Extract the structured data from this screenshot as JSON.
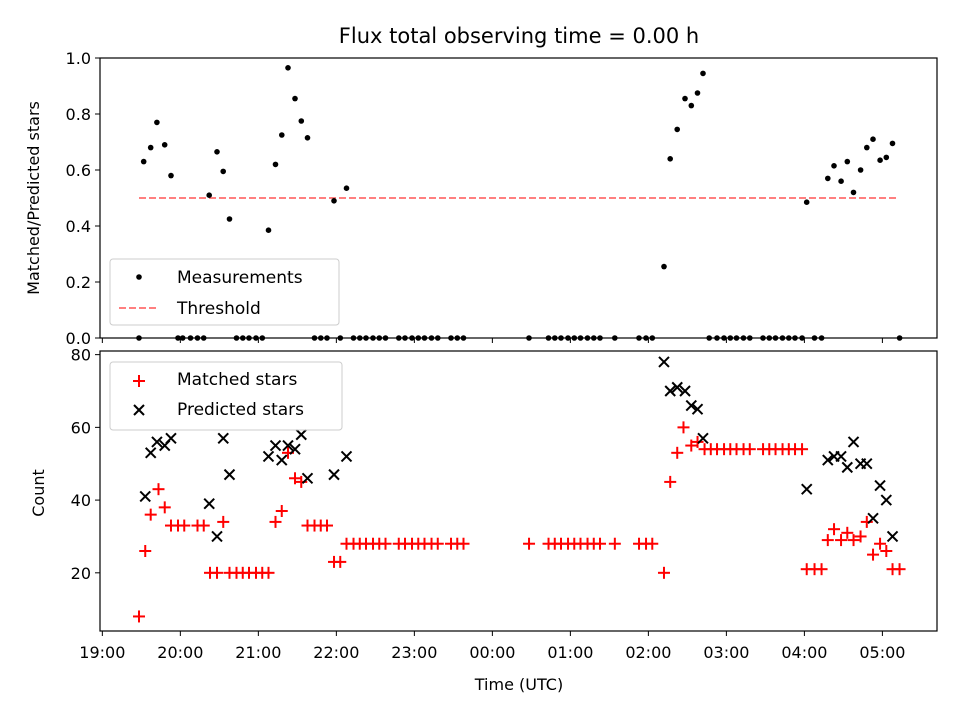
{
  "chart_data": [
    {
      "type": "scatter",
      "title": "Flux total observing time = 0.00 h",
      "xlabel": "",
      "ylabel": "Matched/Predicted stars",
      "ylim": [
        0,
        1.0
      ],
      "yticks": [
        "0.0",
        "0.2",
        "0.4",
        "0.6",
        "0.8",
        "1.0"
      ],
      "grid": false,
      "legend_position": "lower-left",
      "series": [
        {
          "name": "Measurements",
          "marker": "dot",
          "color": "#000000",
          "points": [
            [
              19.47,
              0
            ],
            [
              19.53,
              0.63
            ],
            [
              19.62,
              0.68
            ],
            [
              19.7,
              0.77
            ],
            [
              19.8,
              0.69
            ],
            [
              19.88,
              0.58
            ],
            [
              19.97,
              0
            ],
            [
              20.03,
              0
            ],
            [
              20.13,
              0
            ],
            [
              20.22,
              0
            ],
            [
              20.3,
              0
            ],
            [
              20.37,
              0.51
            ],
            [
              20.47,
              0.665
            ],
            [
              20.55,
              0.595
            ],
            [
              20.63,
              0.425
            ],
            [
              20.72,
              0
            ],
            [
              20.8,
              0
            ],
            [
              20.88,
              0
            ],
            [
              20.97,
              0
            ],
            [
              21.05,
              0
            ],
            [
              21.13,
              0.385
            ],
            [
              21.22,
              0.62
            ],
            [
              21.3,
              0.725
            ],
            [
              21.38,
              0.965
            ],
            [
              21.47,
              0.855
            ],
            [
              21.55,
              0.775
            ],
            [
              21.63,
              0.715
            ],
            [
              21.72,
              0
            ],
            [
              21.8,
              0
            ],
            [
              21.88,
              0
            ],
            [
              21.97,
              0.49
            ],
            [
              22.05,
              0
            ],
            [
              22.13,
              0.535
            ],
            [
              22.22,
              0
            ],
            [
              22.3,
              0
            ],
            [
              22.38,
              0
            ],
            [
              22.47,
              0
            ],
            [
              22.55,
              0
            ],
            [
              22.63,
              0
            ],
            [
              22.8,
              0
            ],
            [
              22.88,
              0
            ],
            [
              22.97,
              0
            ],
            [
              23.05,
              0
            ],
            [
              23.13,
              0
            ],
            [
              23.22,
              0
            ],
            [
              23.3,
              0
            ],
            [
              23.47,
              0
            ],
            [
              23.55,
              0
            ],
            [
              23.63,
              0
            ],
            [
              24.47,
              0
            ],
            [
              24.72,
              0
            ],
            [
              24.8,
              0
            ],
            [
              24.88,
              0
            ],
            [
              24.97,
              0
            ],
            [
              25.05,
              0
            ],
            [
              25.13,
              0
            ],
            [
              25.22,
              0
            ],
            [
              25.3,
              0
            ],
            [
              25.38,
              0
            ],
            [
              25.57,
              0
            ],
            [
              25.88,
              0
            ],
            [
              25.97,
              0
            ],
            [
              26.05,
              0
            ],
            [
              26.2,
              0.255
            ],
            [
              26.28,
              0.64
            ],
            [
              26.37,
              0.745
            ],
            [
              26.47,
              0.855
            ],
            [
              26.55,
              0.83
            ],
            [
              26.63,
              0.875
            ],
            [
              26.7,
              0.945
            ],
            [
              26.78,
              0
            ],
            [
              26.88,
              0
            ],
            [
              26.97,
              0
            ],
            [
              27.05,
              0
            ],
            [
              27.13,
              0
            ],
            [
              27.22,
              0
            ],
            [
              27.3,
              0
            ],
            [
              27.47,
              0
            ],
            [
              27.55,
              0
            ],
            [
              27.63,
              0
            ],
            [
              27.72,
              0
            ],
            [
              27.8,
              0
            ],
            [
              27.88,
              0
            ],
            [
              27.97,
              0
            ],
            [
              28.03,
              0.485
            ],
            [
              28.13,
              0
            ],
            [
              28.22,
              0
            ],
            [
              28.3,
              0.57
            ],
            [
              28.38,
              0.615
            ],
            [
              28.47,
              0.56
            ],
            [
              28.55,
              0.63
            ],
            [
              28.63,
              0.52
            ],
            [
              28.72,
              0.6
            ],
            [
              28.8,
              0.68
            ],
            [
              28.88,
              0.71
            ],
            [
              28.97,
              0.635
            ],
            [
              29.05,
              0.645
            ],
            [
              29.13,
              0.695
            ],
            [
              29.22,
              0
            ]
          ]
        },
        {
          "name": "Threshold",
          "line": "dashed",
          "color": "#ff7f7f",
          "value": 0.5,
          "x_range": [
            19.47,
            29.2
          ]
        }
      ]
    },
    {
      "type": "scatter",
      "title": "",
      "xlabel": "Time (UTC)",
      "ylabel": "Count",
      "ylim": [
        4,
        81
      ],
      "yticks": [
        "20",
        "40",
        "60",
        "80"
      ],
      "xlim": [
        18.97,
        29.7
      ],
      "xticks": [
        {
          "value": 19,
          "label": "19:00"
        },
        {
          "value": 20,
          "label": "20:00"
        },
        {
          "value": 21,
          "label": "21:00"
        },
        {
          "value": 22,
          "label": "22:00"
        },
        {
          "value": 23,
          "label": "23:00"
        },
        {
          "value": 24,
          "label": "00:00"
        },
        {
          "value": 25,
          "label": "01:00"
        },
        {
          "value": 26,
          "label": "02:00"
        },
        {
          "value": 27,
          "label": "03:00"
        },
        {
          "value": 28,
          "label": "04:00"
        },
        {
          "value": 29,
          "label": "05:00"
        }
      ],
      "grid": false,
      "legend_position": "top-left",
      "series": [
        {
          "name": "Matched stars",
          "marker": "plus",
          "color": "#ff0000",
          "points": [
            [
              19.47,
              8
            ],
            [
              19.55,
              26
            ],
            [
              19.62,
              36
            ],
            [
              19.72,
              43
            ],
            [
              19.8,
              38
            ],
            [
              19.88,
              33
            ],
            [
              19.97,
              33
            ],
            [
              20.05,
              33
            ],
            [
              20.22,
              33
            ],
            [
              20.3,
              33
            ],
            [
              20.38,
              20
            ],
            [
              20.47,
              20
            ],
            [
              20.55,
              34
            ],
            [
              20.63,
              20
            ],
            [
              20.72,
              20
            ],
            [
              20.8,
              20
            ],
            [
              20.88,
              20
            ],
            [
              20.97,
              20
            ],
            [
              21.05,
              20
            ],
            [
              21.13,
              20
            ],
            [
              21.22,
              34
            ],
            [
              21.3,
              37
            ],
            [
              21.38,
              53
            ],
            [
              21.47,
              46
            ],
            [
              21.55,
              45
            ],
            [
              21.63,
              33
            ],
            [
              21.72,
              33
            ],
            [
              21.8,
              33
            ],
            [
              21.88,
              33
            ],
            [
              21.97,
              23
            ],
            [
              22.05,
              23
            ],
            [
              22.13,
              28
            ],
            [
              22.22,
              28
            ],
            [
              22.3,
              28
            ],
            [
              22.38,
              28
            ],
            [
              22.47,
              28
            ],
            [
              22.55,
              28
            ],
            [
              22.63,
              28
            ],
            [
              22.8,
              28
            ],
            [
              22.88,
              28
            ],
            [
              22.97,
              28
            ],
            [
              23.05,
              28
            ],
            [
              23.13,
              28
            ],
            [
              23.22,
              28
            ],
            [
              23.3,
              28
            ],
            [
              23.47,
              28
            ],
            [
              23.55,
              28
            ],
            [
              23.63,
              28
            ],
            [
              24.47,
              28
            ],
            [
              24.72,
              28
            ],
            [
              24.8,
              28
            ],
            [
              24.88,
              28
            ],
            [
              24.97,
              28
            ],
            [
              25.05,
              28
            ],
            [
              25.13,
              28
            ],
            [
              25.22,
              28
            ],
            [
              25.3,
              28
            ],
            [
              25.38,
              28
            ],
            [
              25.57,
              28
            ],
            [
              25.88,
              28
            ],
            [
              25.97,
              28
            ],
            [
              26.05,
              28
            ],
            [
              26.2,
              20
            ],
            [
              26.28,
              45
            ],
            [
              26.37,
              53
            ],
            [
              26.45,
              60
            ],
            [
              26.55,
              55
            ],
            [
              26.63,
              56
            ],
            [
              26.72,
              54
            ],
            [
              26.8,
              54
            ],
            [
              26.88,
              54
            ],
            [
              26.97,
              54
            ],
            [
              27.05,
              54
            ],
            [
              27.13,
              54
            ],
            [
              27.22,
              54
            ],
            [
              27.3,
              54
            ],
            [
              27.47,
              54
            ],
            [
              27.55,
              54
            ],
            [
              27.63,
              54
            ],
            [
              27.72,
              54
            ],
            [
              27.8,
              54
            ],
            [
              27.88,
              54
            ],
            [
              27.97,
              54
            ],
            [
              28.03,
              21
            ],
            [
              28.13,
              21
            ],
            [
              28.22,
              21
            ],
            [
              28.3,
              29
            ],
            [
              28.38,
              32
            ],
            [
              28.47,
              29
            ],
            [
              28.55,
              31
            ],
            [
              28.63,
              29
            ],
            [
              28.72,
              30
            ],
            [
              28.8,
              34
            ],
            [
              28.88,
              25
            ],
            [
              28.97,
              28
            ],
            [
              29.05,
              26
            ],
            [
              29.13,
              21
            ],
            [
              29.22,
              21
            ]
          ]
        },
        {
          "name": "Predicted stars",
          "marker": "x",
          "color": "#000000",
          "points": [
            [
              19.55,
              41
            ],
            [
              19.62,
              53
            ],
            [
              19.7,
              56
            ],
            [
              19.8,
              55
            ],
            [
              19.88,
              57
            ],
            [
              20.37,
              39
            ],
            [
              20.47,
              30
            ],
            [
              20.55,
              57
            ],
            [
              20.63,
              47
            ],
            [
              21.13,
              52
            ],
            [
              21.22,
              55
            ],
            [
              21.3,
              51
            ],
            [
              21.38,
              55
            ],
            [
              21.47,
              54
            ],
            [
              21.55,
              58
            ],
            [
              21.63,
              46
            ],
            [
              21.97,
              47
            ],
            [
              22.13,
              52
            ],
            [
              26.2,
              78
            ],
            [
              26.28,
              70
            ],
            [
              26.37,
              71
            ],
            [
              26.47,
              70
            ],
            [
              26.55,
              66
            ],
            [
              26.63,
              65
            ],
            [
              26.7,
              57
            ],
            [
              28.03,
              43
            ],
            [
              28.3,
              51
            ],
            [
              28.38,
              52
            ],
            [
              28.47,
              52
            ],
            [
              28.55,
              49
            ],
            [
              28.63,
              56
            ],
            [
              28.72,
              50
            ],
            [
              28.8,
              50
            ],
            [
              28.88,
              35
            ],
            [
              28.97,
              44
            ],
            [
              29.05,
              40
            ],
            [
              29.13,
              30
            ]
          ]
        }
      ]
    }
  ]
}
